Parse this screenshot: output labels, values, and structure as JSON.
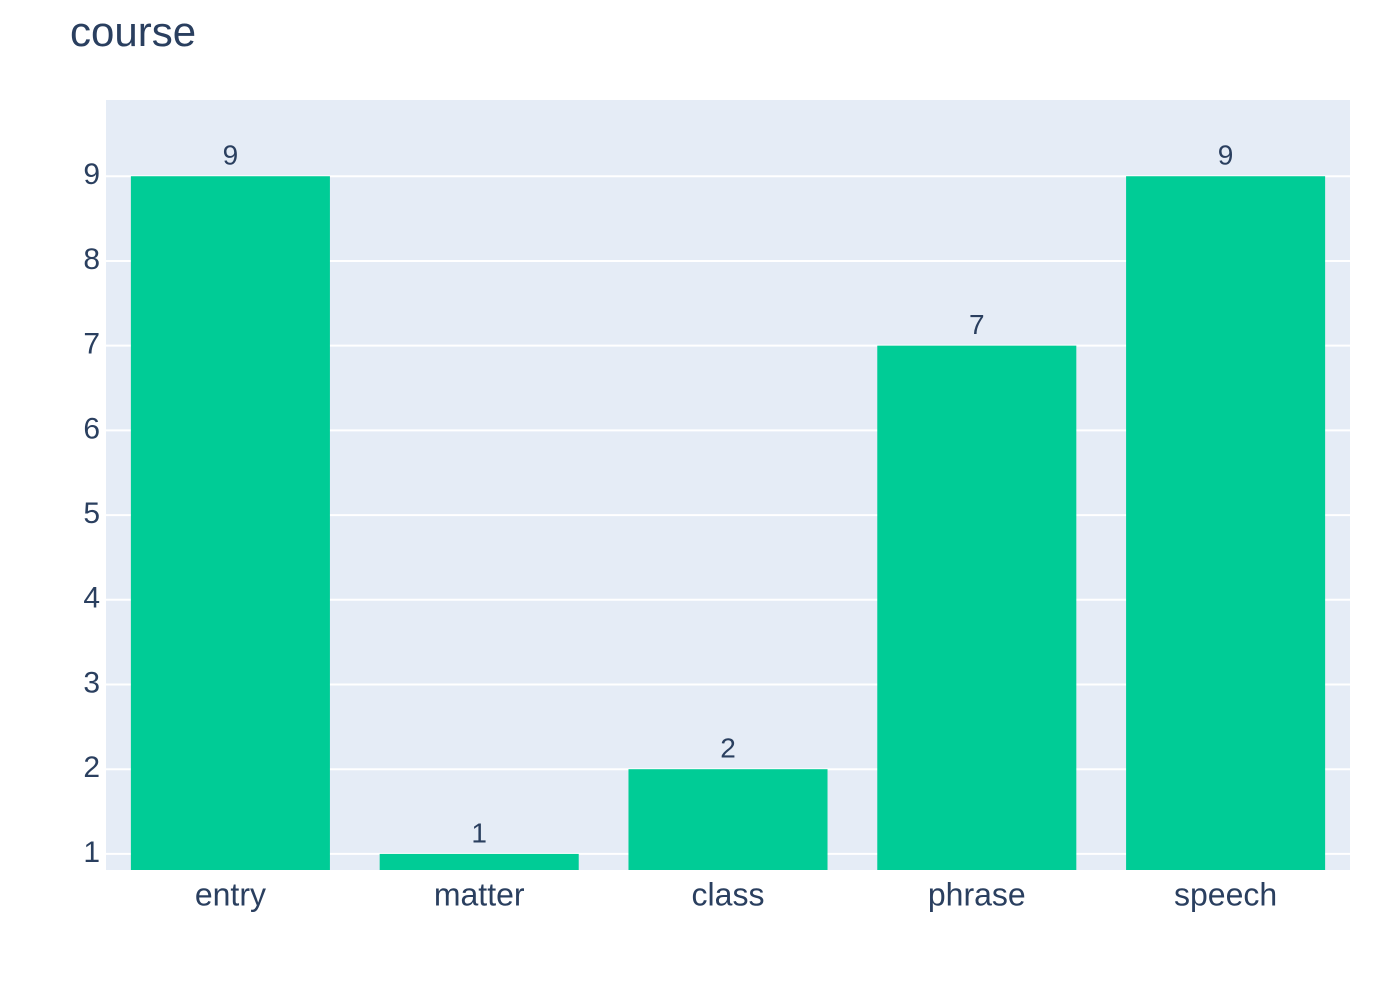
{
  "chart_data": {
    "type": "bar",
    "title": "course",
    "categories": [
      "entry",
      "matter",
      "class",
      "phrase",
      "speech"
    ],
    "values": [
      9,
      1,
      2,
      7,
      9
    ],
    "color": "#00cc96",
    "ylim": [
      0.81,
      9.9
    ],
    "yticks": [
      1,
      2,
      3,
      4,
      5,
      6,
      7,
      8,
      9
    ],
    "grid": true
  }
}
